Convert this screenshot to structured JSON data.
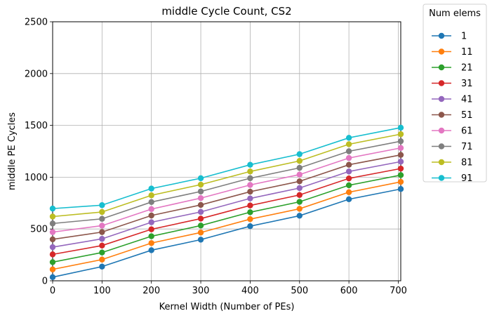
{
  "chart_data": {
    "type": "line",
    "title": "middle Cycle Count, CS2",
    "xlabel": "Kernel Width (Number of PEs)",
    "ylabel": "middle PE Cycles",
    "xlim": [
      0,
      705
    ],
    "ylim": [
      0,
      2500
    ],
    "xticks": [
      0,
      100,
      200,
      300,
      400,
      500,
      600,
      700
    ],
    "yticks": [
      0,
      500,
      1000,
      1500,
      2000,
      2500
    ],
    "grid": true,
    "legend": {
      "title": "Num elems",
      "placement": "outside-top-right"
    },
    "x": [
      0,
      100,
      200,
      300,
      400,
      500,
      600,
      705
    ],
    "series": [
      {
        "name": "1",
        "color": "#1f77b4",
        "values": [
          35,
          137,
          295,
          397,
          527,
          628,
          787,
          886
        ]
      },
      {
        "name": "11",
        "color": "#ff7f0e",
        "values": [
          110,
          205,
          364,
          466,
          595,
          695,
          855,
          955
        ]
      },
      {
        "name": "21",
        "color": "#2ca02c",
        "values": [
          180,
          273,
          430,
          533,
          662,
          762,
          922,
          1020
        ]
      },
      {
        "name": "31",
        "color": "#d62728",
        "values": [
          255,
          340,
          497,
          600,
          727,
          828,
          988,
          1083
        ]
      },
      {
        "name": "41",
        "color": "#9467bd",
        "values": [
          325,
          405,
          565,
          665,
          795,
          895,
          1055,
          1150
        ]
      },
      {
        "name": "51",
        "color": "#8c564b",
        "values": [
          400,
          470,
          630,
          732,
          860,
          960,
          1120,
          1215
        ]
      },
      {
        "name": "61",
        "color": "#e377c2",
        "values": [
          470,
          532,
          692,
          798,
          925,
          1025,
          1185,
          1282
        ]
      },
      {
        "name": "71",
        "color": "#7f7f7f",
        "values": [
          553,
          598,
          760,
          862,
          990,
          1090,
          1250,
          1347
        ]
      },
      {
        "name": "81",
        "color": "#bcbd22",
        "values": [
          620,
          664,
          825,
          928,
          1055,
          1157,
          1318,
          1415
        ]
      },
      {
        "name": "91",
        "color": "#17becf",
        "values": [
          697,
          730,
          890,
          990,
          1120,
          1222,
          1380,
          1478
        ]
      }
    ]
  }
}
